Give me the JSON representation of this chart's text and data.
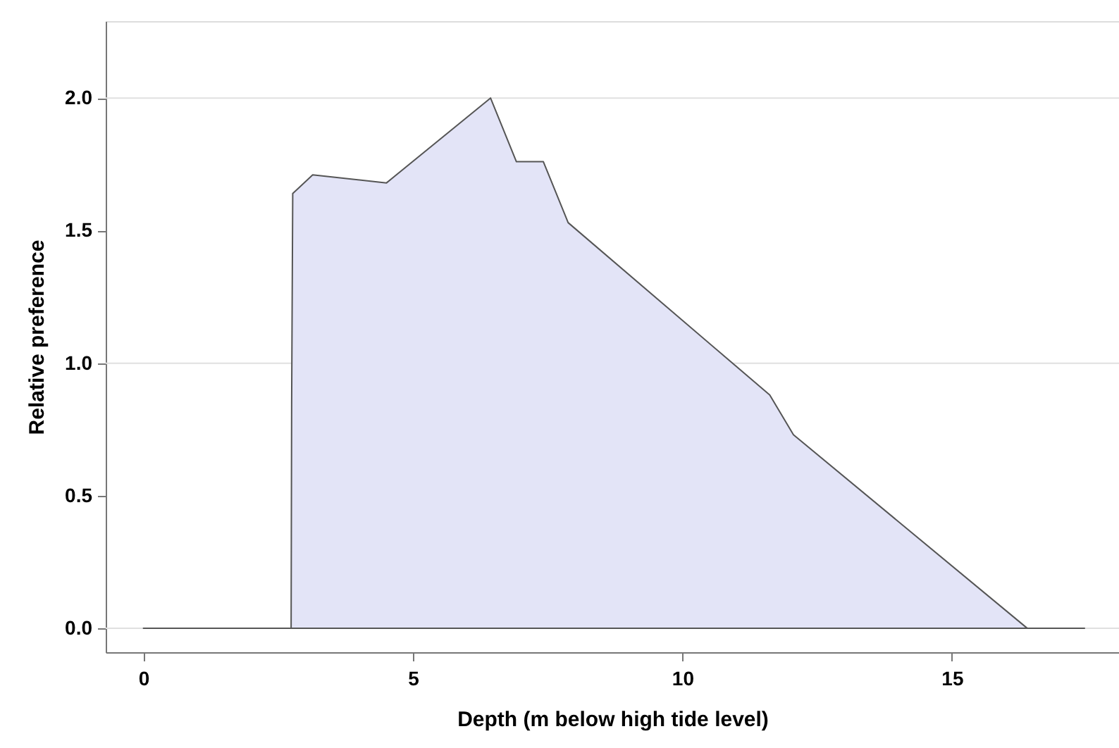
{
  "chart_data": {
    "type": "area",
    "xlabel": "Depth (m below high tide level)",
    "ylabel": "Relative preference",
    "x": [
      0,
      2.74,
      2.75,
      2.77,
      3.14,
      4.51,
      6.44,
      6.92,
      7.42,
      7.88,
      11.62,
      12.06,
      16.4,
      17.46
    ],
    "series": [
      {
        "color": "#e3e4f7",
        "values": [
          0,
          0,
          0.85,
          1.64,
          1.71,
          1.68,
          2.0,
          1.76,
          1.76,
          1.53,
          0.88,
          0.73,
          0,
          0
        ]
      }
    ],
    "xlim": [
      -0.7,
      18.1
    ],
    "ylim": [
      -0.09,
      2.29
    ],
    "xticks": [
      0,
      5,
      10,
      15
    ],
    "yticks": [
      {
        "value": 0,
        "label": "0.0"
      },
      0.5,
      {
        "value": 1,
        "label": "1.0"
      },
      1.5,
      {
        "value": 2,
        "label": "2.0"
      }
    ],
    "grid": "y"
  }
}
